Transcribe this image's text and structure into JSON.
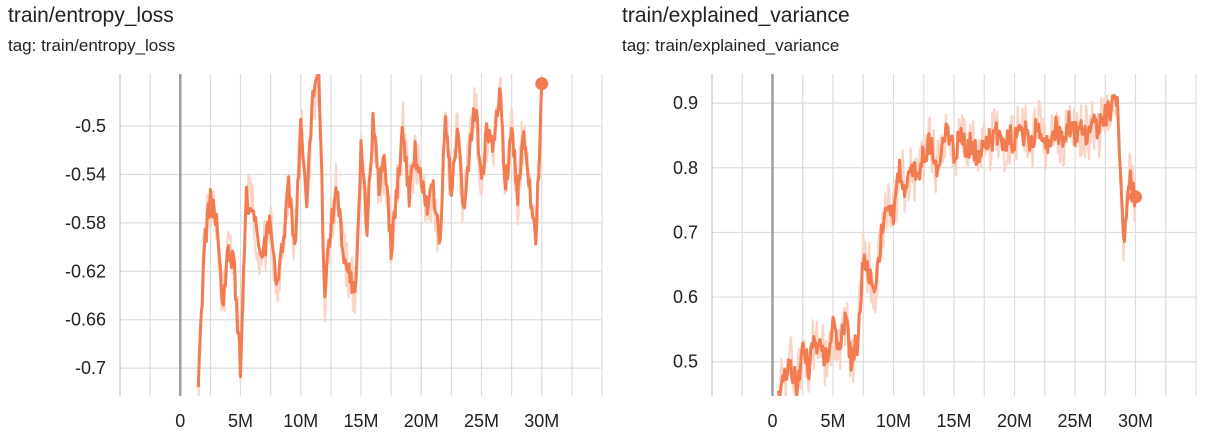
{
  "chart_data": [
    {
      "type": "line",
      "title": "train/entropy_loss",
      "subtitle": "tag: train/entropy_loss",
      "xlabel": "",
      "ylabel": "",
      "xlim": [
        -5000000,
        35000000
      ],
      "ylim": [
        -0.723,
        -0.457
      ],
      "x_ticks": [
        0,
        5000000,
        10000000,
        15000000,
        20000000,
        25000000,
        30000000
      ],
      "x_tick_labels": [
        "0",
        "5M",
        "10M",
        "15M",
        "20M",
        "25M",
        "30M"
      ],
      "y_ticks": [
        -0.5,
        -0.54,
        -0.58,
        -0.62,
        -0.66,
        -0.7
      ],
      "y_tick_labels": [
        "-0.5",
        "-0.54",
        "-0.58",
        "-0.62",
        "-0.66",
        "-0.7"
      ],
      "grid": true,
      "color": "#f27b50",
      "raw_color": "#f9d5c8",
      "series": [
        {
          "x": [
            1500000,
            2000000,
            2500000,
            3000000,
            3500000,
            4000000,
            4500000,
            5000000,
            5500000,
            6000000,
            6500000,
            7000000,
            7500000,
            8000000,
            8500000,
            9000000,
            9500000,
            10000000,
            10500000,
            11000000,
            11500000,
            12000000,
            12500000,
            13000000,
            13500000,
            14000000,
            14500000,
            15000000,
            15500000,
            16000000,
            16500000,
            17000000,
            17500000,
            18000000,
            18500000,
            19000000,
            19500000,
            20000000,
            20500000,
            21000000,
            21500000,
            22000000,
            22500000,
            23000000,
            23500000,
            24000000,
            24500000,
            25000000,
            25500000,
            26000000,
            26500000,
            27000000,
            27500000,
            28000000,
            28500000,
            29000000,
            29500000,
            30000000
          ],
          "y": [
            -0.72,
            -0.6,
            -0.56,
            -0.58,
            -0.65,
            -0.6,
            -0.62,
            -0.7,
            -0.56,
            -0.57,
            -0.6,
            -0.6,
            -0.58,
            -0.63,
            -0.6,
            -0.55,
            -0.6,
            -0.5,
            -0.56,
            -0.48,
            -0.46,
            -0.64,
            -0.58,
            -0.55,
            -0.6,
            -0.62,
            -0.64,
            -0.52,
            -0.58,
            -0.5,
            -0.55,
            -0.53,
            -0.6,
            -0.55,
            -0.5,
            -0.56,
            -0.52,
            -0.55,
            -0.57,
            -0.55,
            -0.6,
            -0.5,
            -0.55,
            -0.5,
            -0.57,
            -0.52,
            -0.48,
            -0.55,
            -0.5,
            -0.52,
            -0.47,
            -0.55,
            -0.5,
            -0.56,
            -0.5,
            -0.55,
            -0.6,
            -0.465
          ]
        }
      ],
      "last_point": {
        "x": 30000000,
        "y": -0.465
      }
    },
    {
      "type": "line",
      "title": "train/explained_variance",
      "subtitle": "tag: train/explained_variance",
      "xlabel": "",
      "ylabel": "",
      "xlim": [
        -5000000,
        35000000
      ],
      "ylim": [
        0.447,
        0.945
      ],
      "x_ticks": [
        0,
        5000000,
        10000000,
        15000000,
        20000000,
        25000000,
        30000000
      ],
      "x_tick_labels": [
        "0",
        "5M",
        "10M",
        "15M",
        "20M",
        "25M",
        "30M"
      ],
      "y_ticks": [
        0.9,
        0.8,
        0.7,
        0.6,
        0.5
      ],
      "y_tick_labels": [
        "0.9",
        "0.8",
        "0.7",
        "0.6",
        "0.5"
      ],
      "grid": true,
      "color": "#f27b50",
      "raw_color": "#f9d5c8",
      "series": [
        {
          "x": [
            500000,
            1000000,
            1500000,
            2000000,
            2500000,
            3000000,
            3500000,
            4000000,
            4500000,
            5000000,
            5500000,
            6000000,
            6500000,
            7000000,
            7500000,
            8000000,
            8500000,
            9000000,
            9500000,
            10000000,
            10500000,
            11000000,
            11500000,
            12000000,
            12500000,
            13000000,
            13500000,
            14000000,
            14500000,
            15000000,
            15500000,
            16000000,
            16500000,
            17000000,
            17500000,
            18000000,
            18500000,
            19000000,
            19500000,
            20000000,
            20500000,
            21000000,
            21500000,
            22000000,
            22500000,
            23000000,
            23500000,
            24000000,
            24500000,
            25000000,
            25500000,
            26000000,
            26500000,
            27000000,
            27500000,
            28000000,
            28500000,
            29000000,
            29500000,
            30000000
          ],
          "y": [
            0.45,
            0.48,
            0.5,
            0.46,
            0.52,
            0.49,
            0.54,
            0.52,
            0.5,
            0.55,
            0.52,
            0.57,
            0.5,
            0.53,
            0.66,
            0.64,
            0.62,
            0.7,
            0.75,
            0.72,
            0.8,
            0.77,
            0.8,
            0.78,
            0.82,
            0.84,
            0.8,
            0.83,
            0.86,
            0.82,
            0.85,
            0.83,
            0.84,
            0.81,
            0.85,
            0.84,
            0.86,
            0.83,
            0.85,
            0.84,
            0.86,
            0.85,
            0.84,
            0.87,
            0.83,
            0.85,
            0.86,
            0.84,
            0.87,
            0.85,
            0.86,
            0.85,
            0.87,
            0.86,
            0.88,
            0.89,
            0.9,
            0.69,
            0.78,
            0.755
          ]
        }
      ],
      "last_point": {
        "x": 30000000,
        "y": 0.755
      }
    }
  ]
}
